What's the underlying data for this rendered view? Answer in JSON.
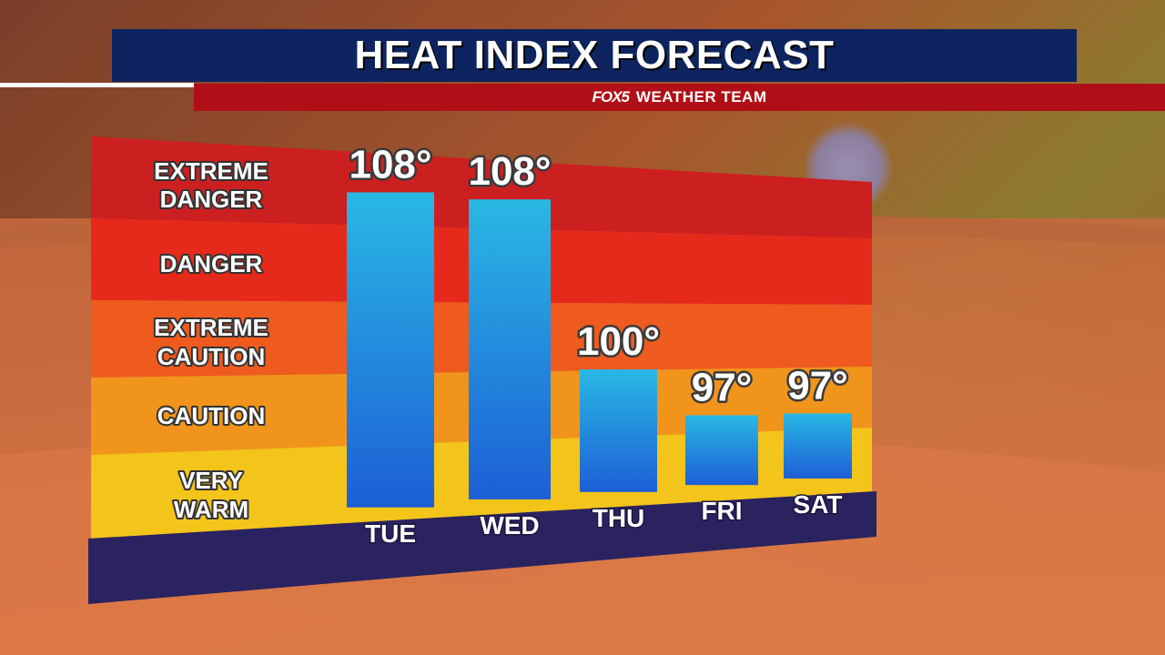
{
  "header": {
    "title": "HEAT INDEX FORECAST",
    "sub_logo": "FOX5",
    "sub_title": "WEATHER TEAM"
  },
  "zones": [
    {
      "label_line1": "EXTREME",
      "label_line2": "DANGER",
      "color": "#cc1f1f"
    },
    {
      "label_line1": "DANGER",
      "label_line2": "",
      "color": "#e52a1c"
    },
    {
      "label_line1": "EXTREME",
      "label_line2": "CAUTION",
      "color": "#ef5a1f"
    },
    {
      "label_line1": "CAUTION",
      "label_line2": "",
      "color": "#f0941b"
    },
    {
      "label_line1": "VERY",
      "label_line2": "WARM",
      "color": "#f3c41a"
    }
  ],
  "chart_data": {
    "type": "bar",
    "categories": [
      "TUE",
      "WED",
      "THU",
      "FRI",
      "SAT"
    ],
    "values": [
      108,
      108,
      100,
      97,
      97
    ],
    "value_labels": [
      "108°",
      "108°",
      "100°",
      "97°",
      "97°"
    ],
    "title": "HEAT INDEX FORECAST",
    "xlabel": "",
    "ylabel": ""
  },
  "colors": {
    "bar_top": "#27b6e2",
    "bar_bottom": "#1d63d8",
    "base": "#2a2360",
    "title_bar": "#0d2460",
    "sub_bar": "#b10f17"
  }
}
